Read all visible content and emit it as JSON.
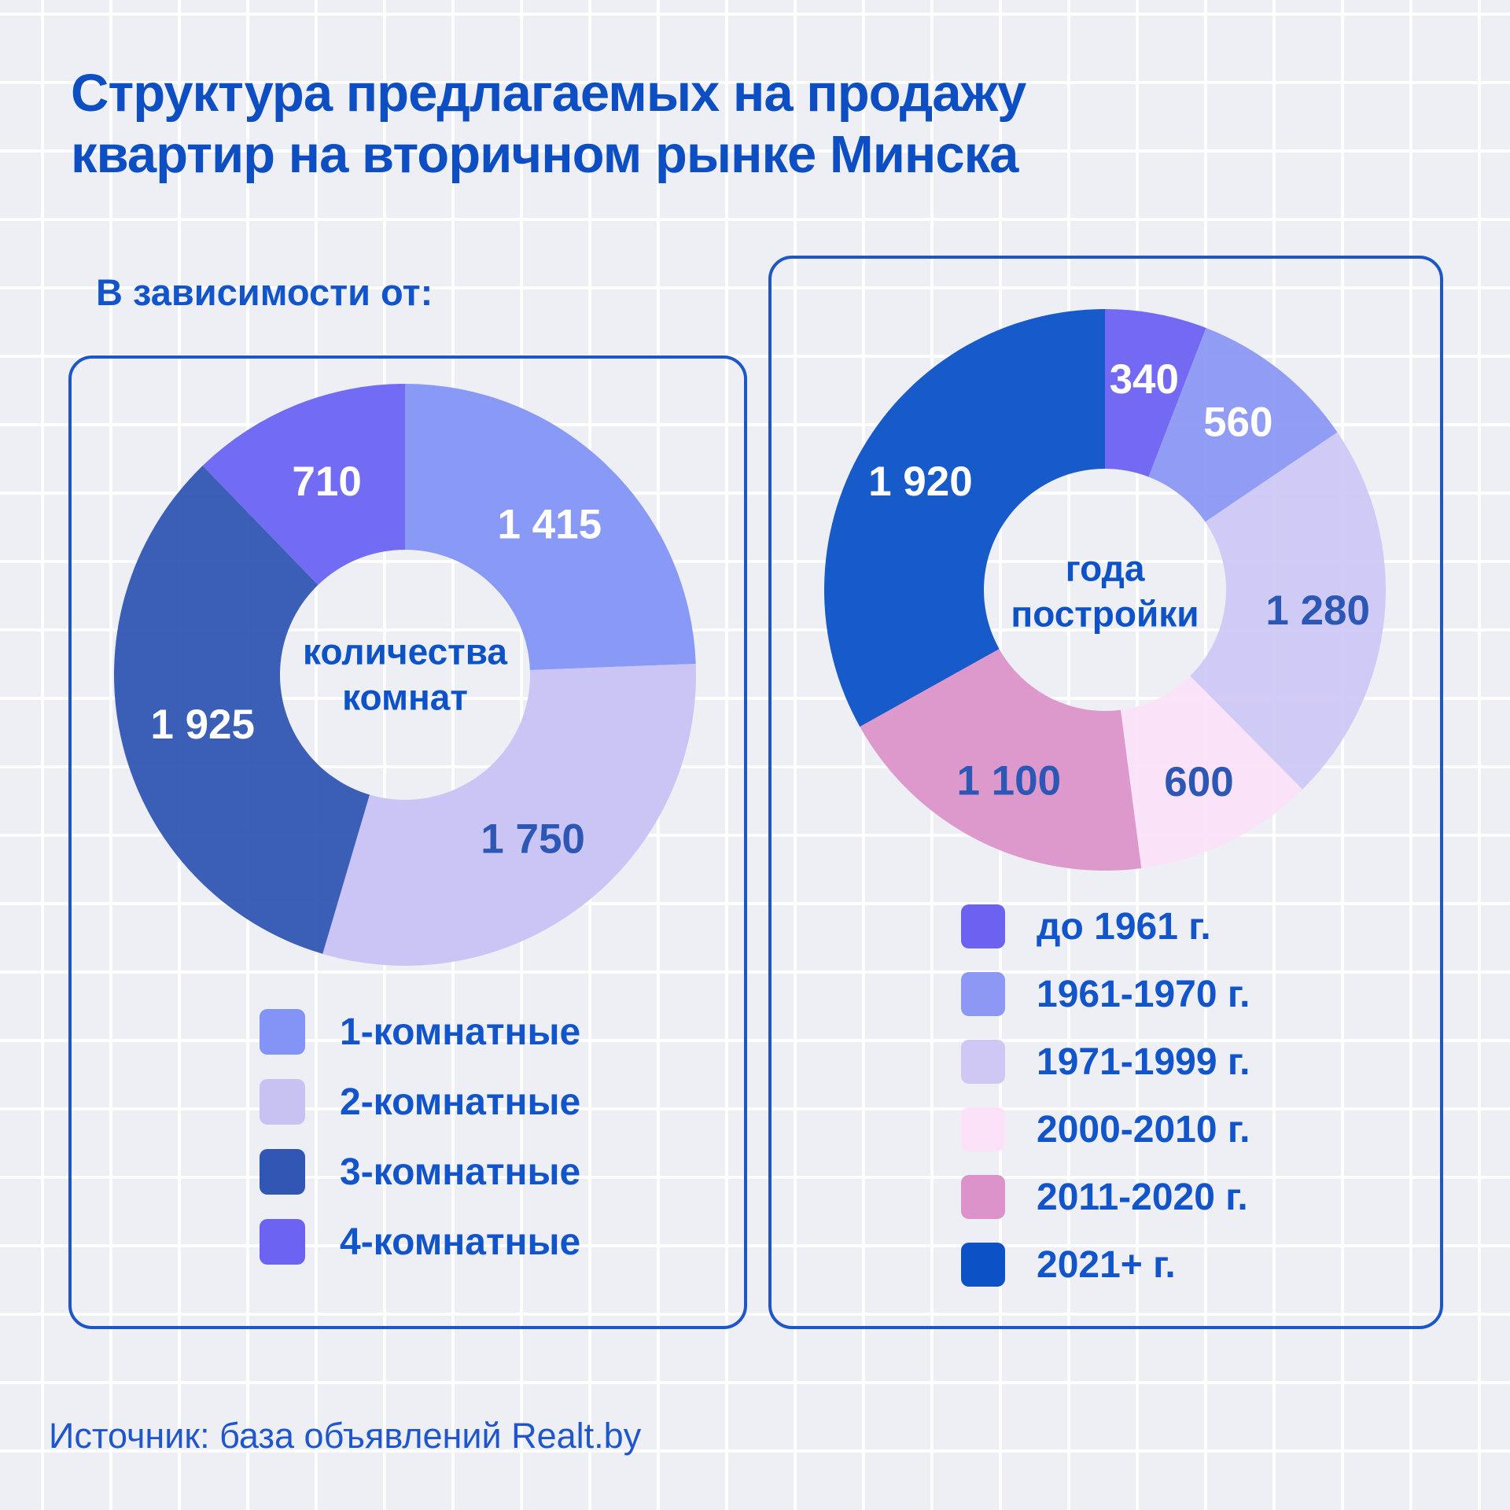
{
  "header": {
    "title": "Структура предлагаемых на продажу квартир на вторичном рынке Минска",
    "title_lines": [
      "Структура предлагаемых на продажу",
      "квартир на вторичном рынке Минска"
    ],
    "subtitle": "В зависимости от:"
  },
  "footer": {
    "source": "Источник: база объявлений Realt.by"
  },
  "theme": {
    "background": "#edeff4",
    "grid_line": "#ffffff",
    "title_color": "#0d4fc3",
    "text_color": "#1254ca",
    "card_border": "#1d56c7",
    "value_on_light_color": "#2d57b5",
    "value_on_dark_color": "#ffffff"
  },
  "chart_data": [
    {
      "type": "pie",
      "subtype": "donut",
      "start_angle_deg": 0,
      "direction": "clockwise",
      "legend_position": "below",
      "center_label": "количества комнат",
      "center_label_lines": [
        "количества",
        "комнат"
      ],
      "slices": [
        {
          "label": "1-комнатные",
          "value": 1415,
          "value_label": "1 415",
          "color": "#8494f6",
          "label_color": "#ffffff"
        },
        {
          "label": "2-комнатные",
          "value": 1750,
          "value_label": "1 750",
          "color": "#c8c2f3",
          "label_color": "#2d57b5"
        },
        {
          "label": "3-комнатные",
          "value": 1925,
          "value_label": "1 925",
          "color": "#3156b3",
          "label_color": "#ffffff"
        },
        {
          "label": "4-комнатные",
          "value": 710,
          "value_label": "710",
          "color": "#6c63f3",
          "label_color": "#ffffff"
        }
      ]
    },
    {
      "type": "pie",
      "subtype": "donut",
      "start_angle_deg": 0,
      "direction": "clockwise",
      "legend_position": "below",
      "center_label": "года постройки",
      "center_label_lines": [
        "года",
        "постройки"
      ],
      "slices": [
        {
          "label": "до 1961 г.",
          "value": 340,
          "value_label": "340",
          "color": "#6d61f2",
          "label_color": "#ffffff"
        },
        {
          "label": "1961-1970 г.",
          "value": 560,
          "value_label": "560",
          "color": "#8c98f3",
          "label_color": "#ffffff"
        },
        {
          "label": "1971-1999 г.",
          "value": 1280,
          "value_label": "1 280",
          "color": "#cfc8f5",
          "label_color": "#2d57b5"
        },
        {
          "label": "2000-2010 г.",
          "value": 600,
          "value_label": "600",
          "color": "#fbe2f8",
          "label_color": "#2d57b5"
        },
        {
          "label": "2011-2020 г.",
          "value": 1100,
          "value_label": "1 100",
          "color": "#dc93c9",
          "label_color": "#2d57b5"
        },
        {
          "label": "2021+ г.",
          "value": 1920,
          "value_label": "1 920",
          "color": "#0c51c6",
          "label_color": "#ffffff"
        }
      ]
    }
  ]
}
